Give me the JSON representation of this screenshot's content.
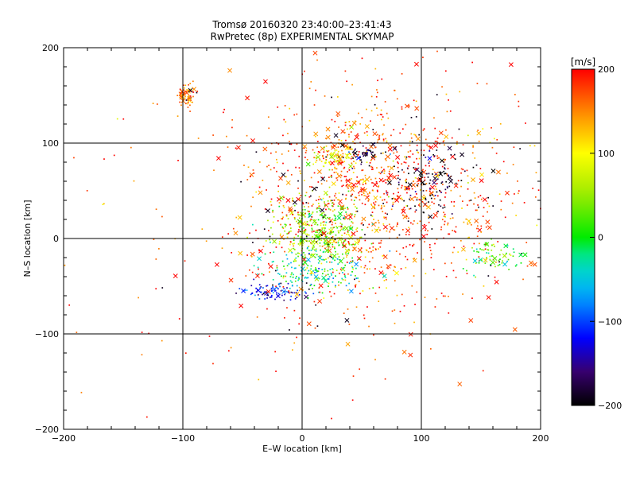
{
  "chart_data": [
    {
      "type": "scatter",
      "title": "Tromsø 20160320 23:40:00–23:41:43",
      "subtitle": "RwPretec (8p) EXPERIMENTAL SKYMAP",
      "xlabel": "E–W location [km]",
      "ylabel": "N–S location [km]",
      "xlim": [
        -200,
        200
      ],
      "ylim": [
        -200,
        200
      ],
      "xticks": [
        "−200",
        "−100",
        "0",
        "100",
        "200"
      ],
      "yticks": [
        "−200",
        "−100",
        "0",
        "100",
        "200"
      ],
      "grid": true,
      "markers": [
        "x",
        "dot"
      ],
      "clusters": [
        {
          "x": -97,
          "y": 150,
          "sx": 4,
          "sy": 6,
          "n": 80,
          "v": 160
        },
        {
          "x": 60,
          "y": 50,
          "sx": 55,
          "sy": 55,
          "n": 1100,
          "v": 170
        },
        {
          "x": 15,
          "y": 5,
          "sx": 20,
          "sy": 20,
          "n": 400,
          "v": 45
        },
        {
          "x": 25,
          "y": 85,
          "sx": 10,
          "sy": 6,
          "n": 70,
          "v": 105
        },
        {
          "x": -22,
          "y": -55,
          "sx": 14,
          "sy": 5,
          "n": 90,
          "v": -120
        },
        {
          "x": 105,
          "y": 60,
          "sx": 18,
          "sy": 18,
          "n": 110,
          "v": -195
        },
        {
          "x": 50,
          "y": 90,
          "sx": 12,
          "sy": 5,
          "n": 45,
          "v": -190
        },
        {
          "x": 160,
          "y": -20,
          "sx": 12,
          "sy": 8,
          "n": 70,
          "v": 15
        },
        {
          "x": 10,
          "y": -35,
          "sx": 20,
          "sy": 10,
          "n": 140,
          "v": -30
        },
        {
          "x": 10,
          "y": 0,
          "sx": 140,
          "sy": 100,
          "n": 250,
          "v": 175
        }
      ]
    },
    {
      "type": "colorbar",
      "label": "[m/s]",
      "range": [
        -200,
        200
      ],
      "ticks": [
        "200",
        "100",
        "0",
        "−100",
        "−200"
      ]
    }
  ]
}
